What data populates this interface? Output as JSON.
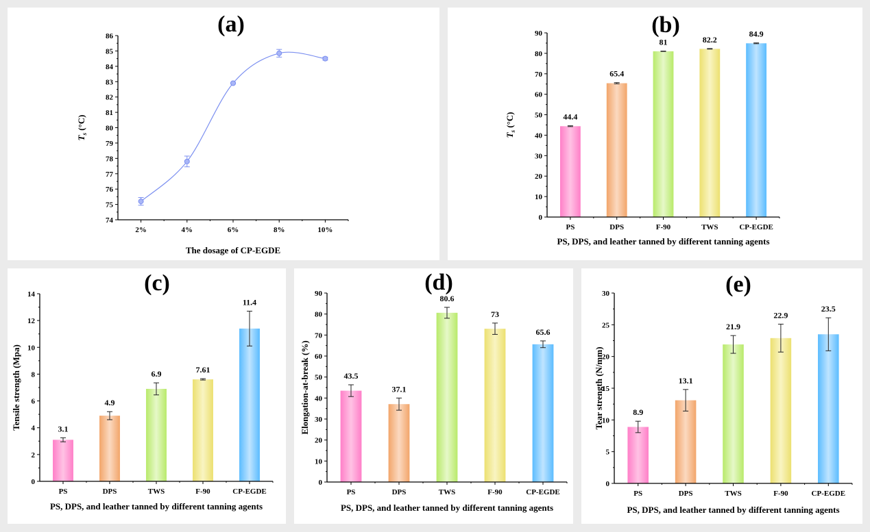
{
  "chart_data": [
    {
      "id": "a",
      "type": "line",
      "panel_label": "(a)",
      "title": "",
      "xlabel": "The dosage of CP-EGDE",
      "ylabel_main": "T",
      "ylabel_sub": "s",
      "ylabel_unit": " (°C)",
      "categories": [
        "2%",
        "4%",
        "6%",
        "8%",
        "10%"
      ],
      "values": [
        75.2,
        77.8,
        82.9,
        84.85,
        84.5
      ],
      "errors": [
        0.25,
        0.35,
        0.05,
        0.25,
        0.1
      ],
      "ylim": [
        74,
        86
      ],
      "yticks": [
        74,
        75,
        76,
        77,
        78,
        79,
        80,
        81,
        82,
        83,
        84,
        85,
        86
      ],
      "series_color": "#7b8ff0",
      "grid": false,
      "smooth": true
    },
    {
      "id": "b",
      "type": "bar",
      "panel_label": "(b)",
      "xlabel": "PS, DPS, and leather tanned by different tanning agents",
      "ylabel_main": "T",
      "ylabel_sub": "s",
      "ylabel_unit": " (°C)",
      "categories": [
        "PS",
        "DPS",
        "F-90",
        "TWS",
        "CP-EGDE"
      ],
      "values": [
        44.4,
        65.4,
        81,
        82.2,
        84.9
      ],
      "labels": [
        "44.4",
        "65.4",
        "81",
        "82.2",
        "84.9"
      ],
      "errors": [
        0.2,
        0.3,
        0.1,
        0.15,
        0.2
      ],
      "ylim": [
        0,
        90
      ],
      "yticks": [
        0,
        10,
        20,
        30,
        40,
        50,
        60,
        70,
        80,
        90
      ],
      "bar_colors": [
        "pink",
        "orange",
        "green",
        "yellow",
        "blue"
      ],
      "grid": false
    },
    {
      "id": "c",
      "type": "bar",
      "panel_label": "(c)",
      "xlabel": "PS, DPS, and leather tanned by different tanning agents",
      "ylabel_main": "Tensile strength (Mpa)",
      "ylabel_sub": "",
      "ylabel_unit": "",
      "categories": [
        "PS",
        "DPS",
        "TWS",
        "F-90",
        "CP-EGDE"
      ],
      "values": [
        3.1,
        4.9,
        6.9,
        7.61,
        11.4
      ],
      "labels": [
        "3.1",
        "4.9",
        "6.9",
        "7.61",
        "11.4"
      ],
      "errors": [
        0.15,
        0.3,
        0.45,
        0.05,
        1.3
      ],
      "ylim": [
        0,
        14
      ],
      "yticks": [
        0,
        2,
        4,
        6,
        8,
        10,
        12,
        14
      ],
      "bar_colors": [
        "pink",
        "orange",
        "green",
        "yellow",
        "blue"
      ],
      "grid": false
    },
    {
      "id": "d",
      "type": "bar",
      "panel_label": "(d)",
      "xlabel": "PS, DPS, and leather tanned by different tanning agents",
      "ylabel_main": "Elongation-at-break (%)",
      "ylabel_sub": "",
      "ylabel_unit": "",
      "categories": [
        "PS",
        "DPS",
        "TWS",
        "F-90",
        "CP-EGDE"
      ],
      "values": [
        43.5,
        37.1,
        80.6,
        73,
        65.6
      ],
      "labels": [
        "43.5",
        "37.1",
        "80.6",
        "73",
        "65.6"
      ],
      "errors": [
        2.8,
        2.9,
        2.6,
        2.7,
        1.6
      ],
      "ylim": [
        0,
        90
      ],
      "yticks": [
        0,
        10,
        20,
        30,
        40,
        50,
        60,
        70,
        80,
        90
      ],
      "bar_colors": [
        "pink",
        "orange",
        "green",
        "yellow",
        "blue"
      ],
      "grid": false
    },
    {
      "id": "e",
      "type": "bar",
      "panel_label": "(e)",
      "xlabel": "PS, DPS, and leather tanned by different tanning agents",
      "ylabel_main": "Tear strength (N/mm)",
      "ylabel_sub": "",
      "ylabel_unit": "",
      "categories": [
        "PS",
        "DPS",
        "TWS",
        "F-90",
        "CP-EGDE"
      ],
      "values": [
        8.9,
        13.1,
        21.9,
        22.9,
        23.5
      ],
      "labels": [
        "8.9",
        "13.1",
        "21.9",
        "22.9",
        "23.5"
      ],
      "errors": [
        0.9,
        1.7,
        1.4,
        2.2,
        2.6
      ],
      "ylim": [
        0,
        30
      ],
      "yticks": [
        0,
        5,
        10,
        15,
        20,
        25,
        30
      ],
      "bar_colors": [
        "pink",
        "orange",
        "green",
        "yellow",
        "blue"
      ],
      "grid": false
    }
  ],
  "palette": {
    "pink": {
      "edge": "#ff7fc8",
      "center": "#ffc2e4"
    },
    "orange": {
      "edge": "#f2a56a",
      "center": "#fbd9c0"
    },
    "green": {
      "edge": "#b8ea6a",
      "center": "#e6f8c8"
    },
    "yellow": {
      "edge": "#ece070",
      "center": "#f9f4c2"
    },
    "blue": {
      "edge": "#5bbcff",
      "center": "#bfe4ff"
    }
  }
}
